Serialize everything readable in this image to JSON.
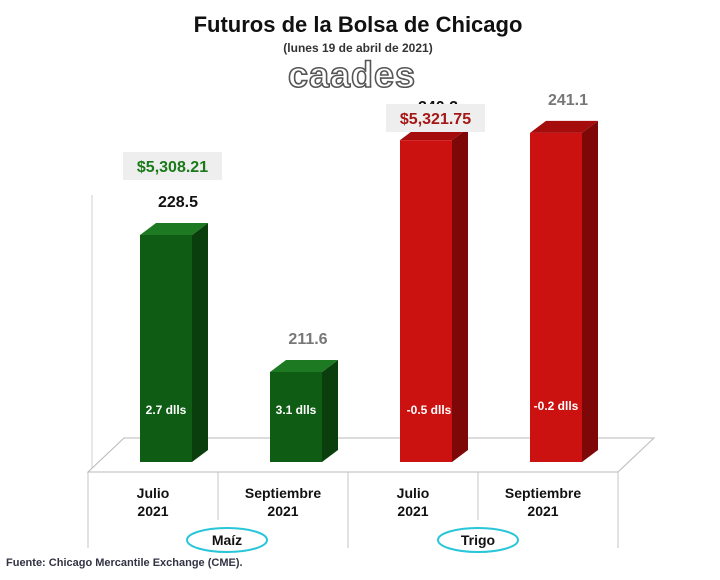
{
  "header": {
    "title": "Futuros de la Bolsa de Chicago",
    "subtitle": "(lunes 19 de abril de 2021)",
    "brand": "caades"
  },
  "footer": {
    "source": "Fuente: Chicago Mercantile Exchange (CME)."
  },
  "colors": {
    "maiz_front": "#0f5c14",
    "maiz_side": "#0a3f0d",
    "maiz_top": "#1e7a22",
    "trigo_front": "#cc1111",
    "trigo_side": "#7e0808",
    "trigo_top": "#a50d0d",
    "price_green": "#1a7a1a",
    "price_red": "#a51616",
    "oval_border": "#28c6d8",
    "box_bg": "#eeeeee"
  },
  "chart_data": {
    "type": "bar",
    "title": "Futuros de la Bolsa de Chicago",
    "subtitle": "(lunes 19 de abril de 2021)",
    "ylim": [
      0,
      270
    ],
    "grid": false,
    "groups": [
      {
        "name": "Maíz",
        "price_label": "$5,308.21",
        "bars": [
          {
            "category_line1": "Julio",
            "category_line2": "2021",
            "value": 228.5,
            "value_label": "228.5",
            "change_label": "2.7 dlls"
          },
          {
            "category_line1": "Septiembre",
            "category_line2": "2021",
            "value": 211.6,
            "value_label": "211.6",
            "change_label": "3.1 dlls"
          }
        ]
      },
      {
        "name": "Trigo",
        "price_label": "$5,321.75",
        "bars": [
          {
            "category_line1": "Julio",
            "category_line2": "2021",
            "value": 240.2,
            "value_label": "240.2",
            "change_label": "-0.5 dlls"
          },
          {
            "category_line1": "Septiembre",
            "category_line2": "2021",
            "value": 241.1,
            "value_label": "241.1",
            "change_label": "-0.2 dlls"
          }
        ]
      }
    ]
  }
}
